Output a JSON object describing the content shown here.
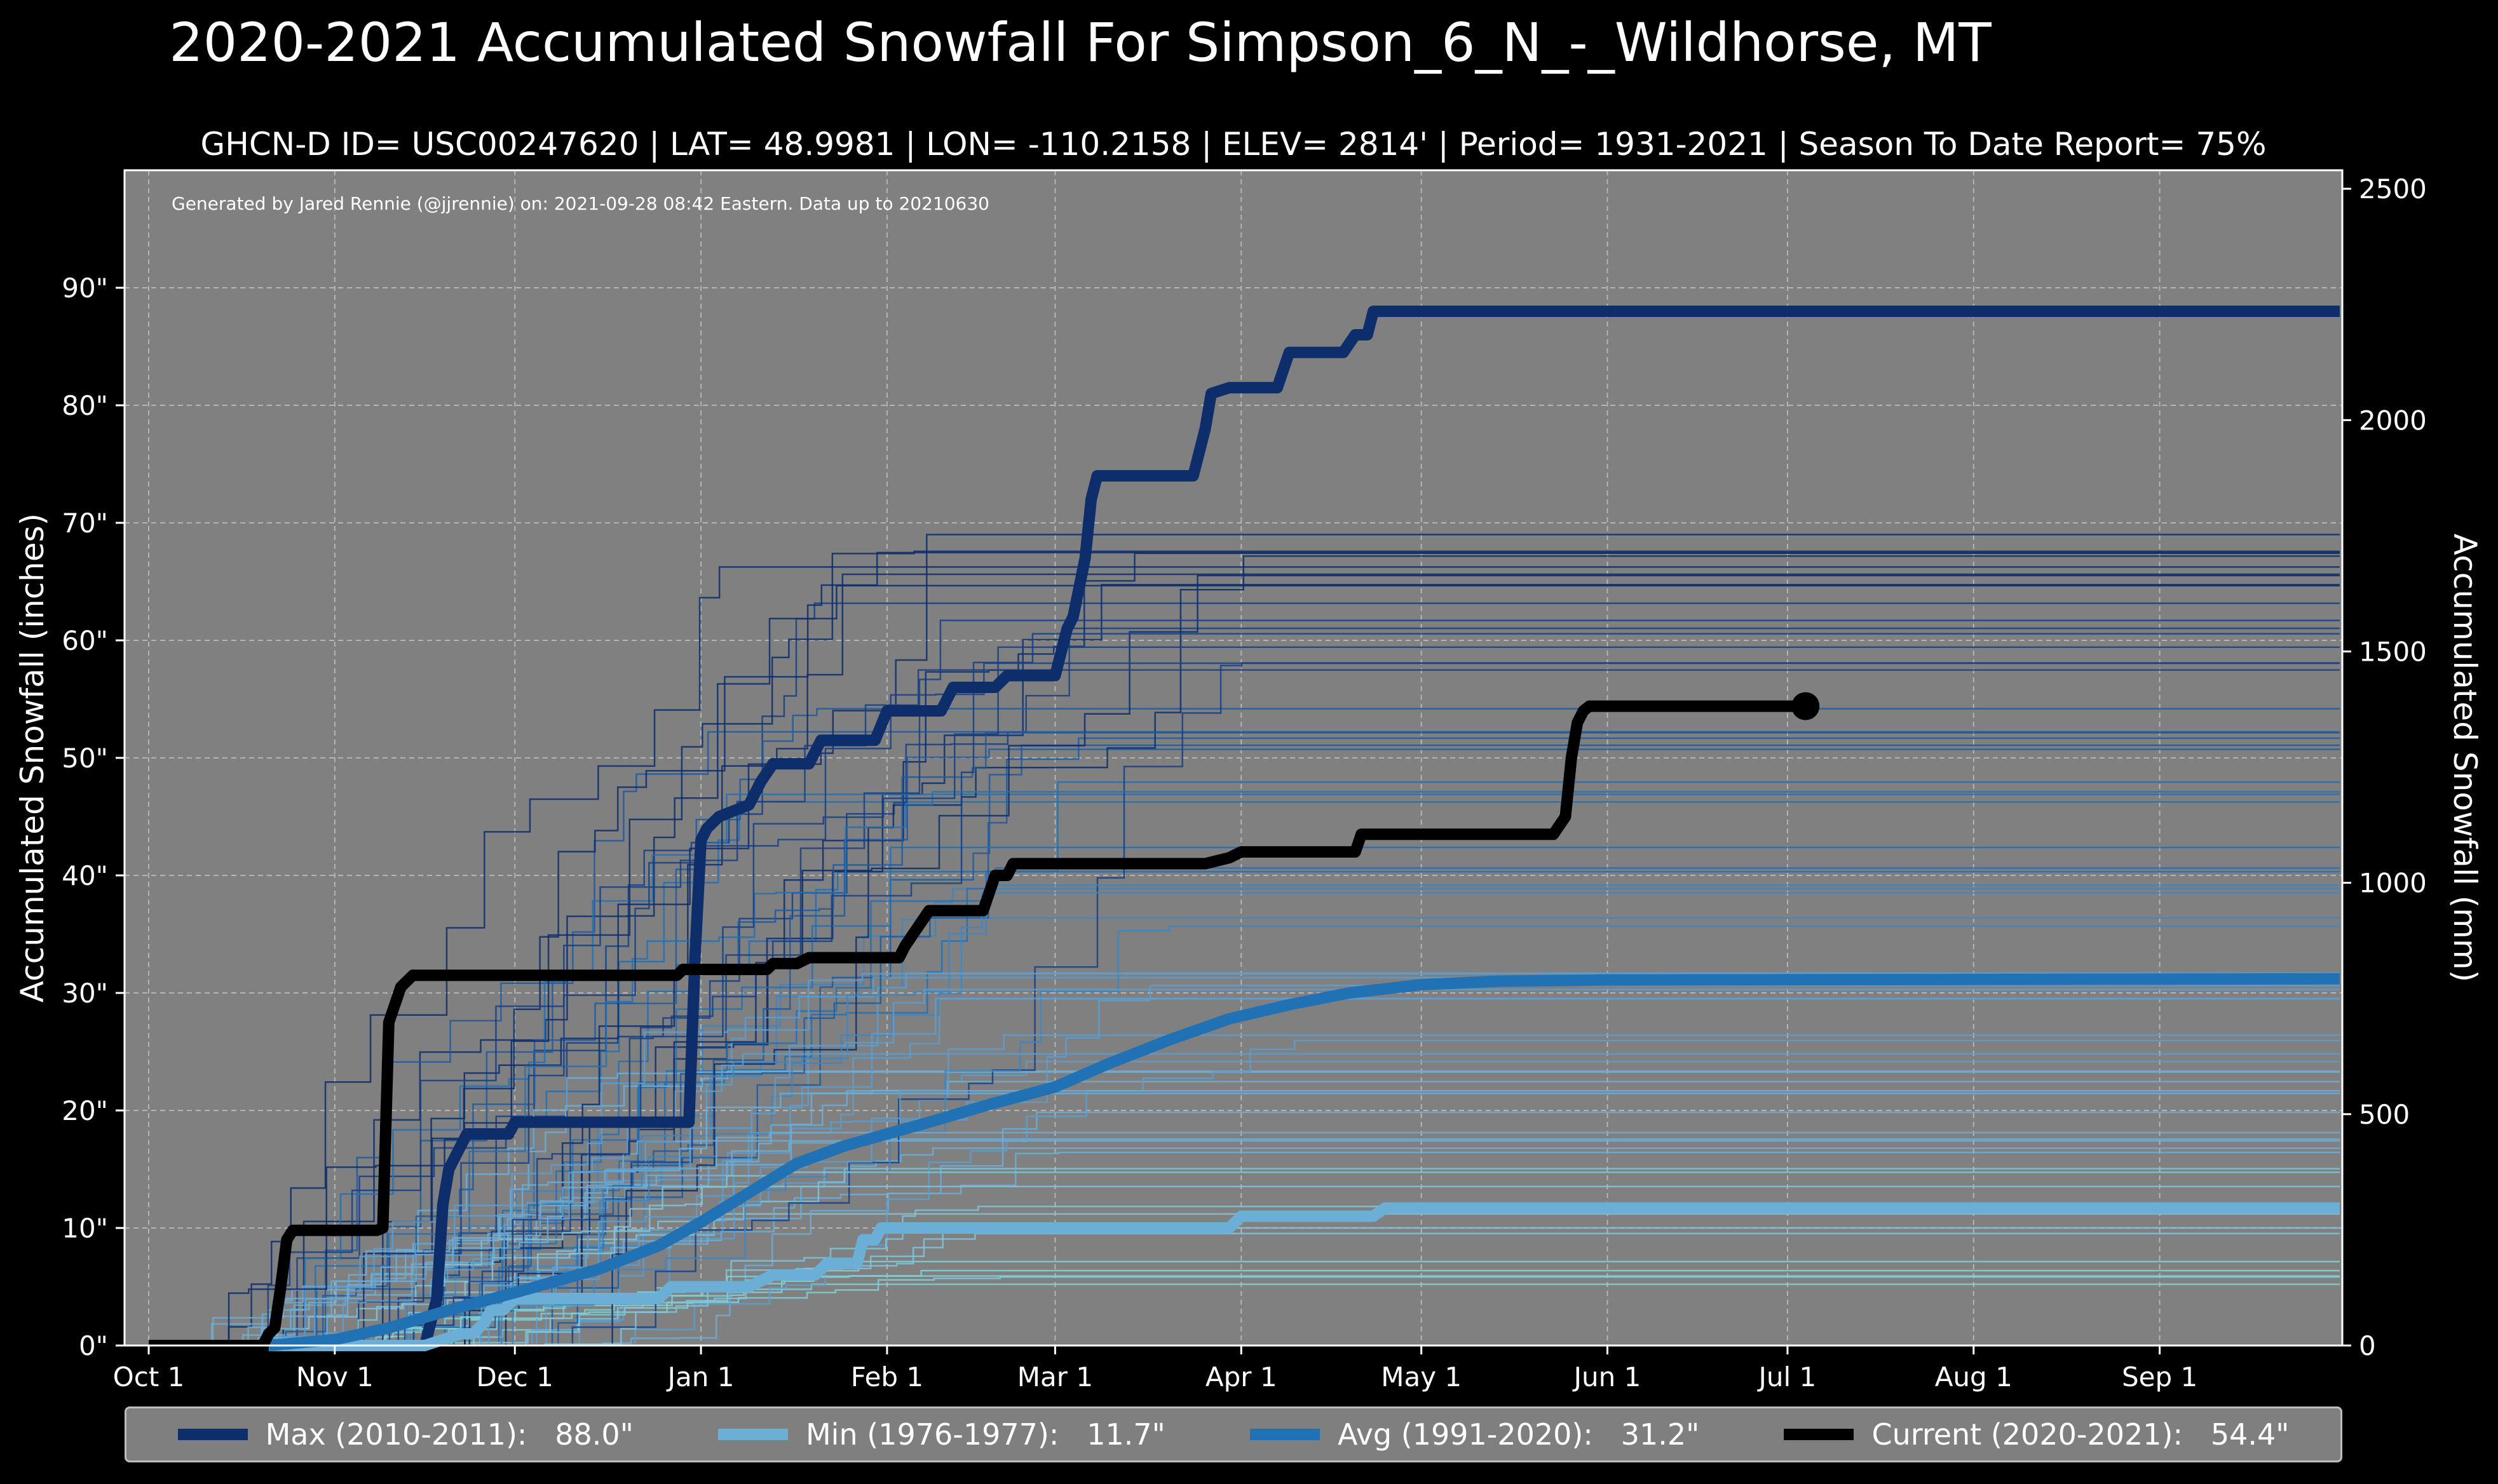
{
  "title": "2020-2021 Accumulated Snowfall For Simpson_6_N_-_Wildhorse, MT",
  "subtitle": "GHCN-D ID= USC00247620 | LAT= 48.9981 | LON= -110.2158 | ELEV= 2814' | Period= 1931-2021 | Season To Date Report= 75%",
  "credit": "Generated by Jared Rennie (@jjrennie) on: 2021-09-28 08:42 Eastern. Data up to 20210630",
  "colors": {
    "max": "#0d2d6b",
    "min": "#6baed6",
    "avg": "#2171b5",
    "current": "#000000",
    "plot_bg": "#808080"
  },
  "chart_data": {
    "type": "line",
    "x_unit": "day of season (0 = Oct 1)",
    "xlim": [
      0,
      365
    ],
    "ylim": [
      0,
      100
    ],
    "ylabel": "Accumulated Snowfall (inches)",
    "ylabel_right": "Accumulated Snowfall (mm)",
    "x_ticks": [
      {
        "day": 0,
        "label": "Oct 1"
      },
      {
        "day": 31,
        "label": "Nov 1"
      },
      {
        "day": 61,
        "label": "Dec 1"
      },
      {
        "day": 92,
        "label": "Jan 1"
      },
      {
        "day": 123,
        "label": "Feb 1"
      },
      {
        "day": 151,
        "label": "Mar 1"
      },
      {
        "day": 182,
        "label": "Apr 1"
      },
      {
        "day": 212,
        "label": "May 1"
      },
      {
        "day": 243,
        "label": "Jun 1"
      },
      {
        "day": 273,
        "label": "Jul 1"
      },
      {
        "day": 304,
        "label": "Aug 1"
      },
      {
        "day": 335,
        "label": "Sep 1"
      }
    ],
    "y_ticks": [
      {
        "value": 0,
        "label": "0\""
      },
      {
        "value": 10,
        "label": "10\""
      },
      {
        "value": 20,
        "label": "20\""
      },
      {
        "value": 30,
        "label": "30\""
      },
      {
        "value": 40,
        "label": "40\""
      },
      {
        "value": 50,
        "label": "50\""
      },
      {
        "value": 60,
        "label": "60\""
      },
      {
        "value": 70,
        "label": "70\""
      },
      {
        "value": 80,
        "label": "80\""
      },
      {
        "value": 90,
        "label": "90\""
      }
    ],
    "y2_ticks": [
      {
        "value": 0,
        "label": "0"
      },
      {
        "value": 500,
        "label": "500"
      },
      {
        "value": 1000,
        "label": "1000"
      },
      {
        "value": 1500,
        "label": "1500"
      },
      {
        "value": 2000,
        "label": "2000"
      },
      {
        "value": 2500,
        "label": "2500"
      }
    ],
    "series": [
      {
        "name": "Max",
        "label": "Max (2010-2011):   88.0\"",
        "color": "#0d2d6b",
        "width": 18,
        "points": [
          [
            20,
            0
          ],
          [
            46,
            0
          ],
          [
            48,
            4
          ],
          [
            49,
            12
          ],
          [
            50,
            15
          ],
          [
            51,
            16
          ],
          [
            53,
            18
          ],
          [
            60,
            18
          ],
          [
            61,
            19
          ],
          [
            90,
            19
          ],
          [
            91,
            33
          ],
          [
            92,
            43
          ],
          [
            93,
            44
          ],
          [
            95,
            45
          ],
          [
            100,
            46
          ],
          [
            102,
            48
          ],
          [
            104,
            49.5
          ],
          [
            110,
            49.5
          ],
          [
            112,
            51.5
          ],
          [
            121,
            51.5
          ],
          [
            123,
            54
          ],
          [
            132,
            54
          ],
          [
            134,
            56
          ],
          [
            141,
            56
          ],
          [
            143,
            57
          ],
          [
            151,
            57
          ],
          [
            153,
            61
          ],
          [
            154,
            62
          ],
          [
            156,
            67
          ],
          [
            157,
            72
          ],
          [
            158,
            74
          ],
          [
            174,
            74
          ],
          [
            176,
            78
          ],
          [
            177,
            81
          ],
          [
            180,
            81.5
          ],
          [
            188,
            81.5
          ],
          [
            190,
            84.5
          ],
          [
            199,
            84.5
          ],
          [
            201,
            86
          ],
          [
            203,
            86
          ],
          [
            204,
            88
          ],
          [
            365,
            88
          ]
        ]
      },
      {
        "name": "Min",
        "label": "Min (1976-1977):   11.7\"",
        "color": "#6baed6",
        "width": 18,
        "points": [
          [
            20,
            0
          ],
          [
            46,
            0
          ],
          [
            52,
            1
          ],
          [
            54,
            1
          ],
          [
            56,
            2
          ],
          [
            57,
            3
          ],
          [
            59,
            3
          ],
          [
            60,
            3.5
          ],
          [
            61,
            4
          ],
          [
            85,
            4
          ],
          [
            87,
            5
          ],
          [
            100,
            5
          ],
          [
            104,
            6
          ],
          [
            111,
            6
          ],
          [
            113,
            7
          ],
          [
            118,
            7
          ],
          [
            119,
            9
          ],
          [
            121,
            9
          ],
          [
            122,
            10
          ],
          [
            160,
            10
          ],
          [
            180,
            10
          ],
          [
            182,
            11
          ],
          [
            204,
            11
          ],
          [
            206,
            11.7
          ],
          [
            365,
            11.7
          ]
        ]
      },
      {
        "name": "Avg",
        "label": "Avg (1991-2020):   31.2\"",
        "color": "#2171b5",
        "width": 18,
        "points": [
          [
            20,
            0
          ],
          [
            31,
            0.5
          ],
          [
            40,
            1.5
          ],
          [
            50,
            3
          ],
          [
            61,
            4.5
          ],
          [
            75,
            6.5
          ],
          [
            85,
            8.5
          ],
          [
            92,
            10.5
          ],
          [
            100,
            13
          ],
          [
            108,
            15.5
          ],
          [
            116,
            17
          ],
          [
            123,
            18
          ],
          [
            130,
            19
          ],
          [
            140,
            20.5
          ],
          [
            151,
            22
          ],
          [
            160,
            24
          ],
          [
            170,
            26
          ],
          [
            180,
            27.8
          ],
          [
            190,
            29
          ],
          [
            200,
            30
          ],
          [
            212,
            30.7
          ],
          [
            225,
            31
          ],
          [
            243,
            31.1
          ],
          [
            365,
            31.2
          ]
        ]
      },
      {
        "name": "Current",
        "label": "Current (2020-2021):   54.4\"",
        "color": "#000000",
        "width": 18,
        "end_marker": true,
        "points": [
          [
            0,
            0
          ],
          [
            19,
            0
          ],
          [
            20,
            1
          ],
          [
            21,
            1.5
          ],
          [
            22,
            5
          ],
          [
            23,
            9
          ],
          [
            24,
            9.8
          ],
          [
            38,
            9.8
          ],
          [
            39,
            10
          ],
          [
            40,
            27.5
          ],
          [
            41,
            29
          ],
          [
            42,
            30.5
          ],
          [
            44,
            31.5
          ],
          [
            88,
            31.5
          ],
          [
            89,
            32
          ],
          [
            103,
            32
          ],
          [
            104,
            32.5
          ],
          [
            108,
            32.5
          ],
          [
            110,
            33
          ],
          [
            125,
            33
          ],
          [
            126,
            34
          ],
          [
            128,
            35.5
          ],
          [
            130,
            37
          ],
          [
            139,
            37
          ],
          [
            140,
            38.5
          ],
          [
            141,
            40
          ],
          [
            143,
            40
          ],
          [
            144,
            41
          ],
          [
            176,
            41
          ],
          [
            180,
            41.5
          ],
          [
            182,
            42
          ],
          [
            201,
            42
          ],
          [
            202,
            43.5
          ],
          [
            234,
            43.5
          ],
          [
            236,
            45
          ],
          [
            237,
            50
          ],
          [
            238,
            53
          ],
          [
            239,
            54
          ],
          [
            240,
            54.4
          ],
          [
            276,
            54.4
          ]
        ]
      }
    ]
  },
  "legend": [
    {
      "label": "Max (2010-2011):   88.0\"",
      "color": "#0d2d6b"
    },
    {
      "label": "Min (1976-1977):   11.7\"",
      "color": "#6baed6"
    },
    {
      "label": "Avg (1991-2020):   31.2\"",
      "color": "#2171b5"
    },
    {
      "label": "Current (2020-2021):   54.4\"",
      "color": "#000000"
    }
  ]
}
